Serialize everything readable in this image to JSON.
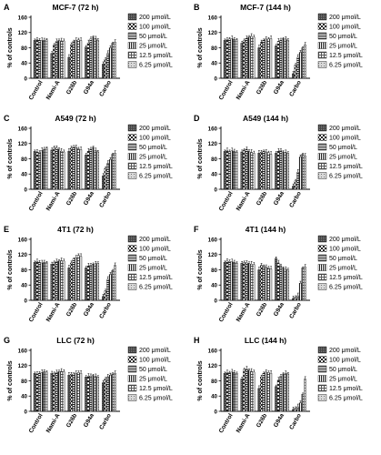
{
  "legend_entries": [
    "200 μmol/L",
    "100 μmol/L",
    "50 μmol/L",
    "25 μmol/L",
    "12.5 μmol/L",
    "6.25 μmol/L"
  ],
  "colors": {
    "axis": "#000000",
    "bar_dark": "#555555",
    "bar_mid": "#8c8c8c",
    "bar_light": "#e6e6e6",
    "background": "#ffffff"
  },
  "chart_data": [
    {
      "type": "bar",
      "panel": "A",
      "title": "MCF-7 (72 h)",
      "ylabel": "% of controls",
      "ylim": [
        0,
        160
      ],
      "yticks": [
        0,
        40,
        80,
        120,
        160
      ],
      "categories": [
        "Control",
        "Nami-A",
        "G26b",
        "G94a",
        "Carbo"
      ],
      "series": [
        {
          "name": "200 μmol/L",
          "values": [
            100,
            65,
            55,
            82,
            37
          ]
        },
        {
          "name": "100 μmol/L",
          "values": [
            101,
            88,
            88,
            93,
            50
          ]
        },
        {
          "name": "50 μmol/L",
          "values": [
            100,
            97,
            97,
            103,
            65
          ]
        },
        {
          "name": "25 μmol/L",
          "values": [
            99,
            99,
            100,
            108,
            80
          ]
        },
        {
          "name": "12.5 μmol/L",
          "values": [
            100,
            98,
            101,
            104,
            92
          ]
        },
        {
          "name": "6.25 μmol/L",
          "values": [
            101,
            98,
            99,
            100,
            95
          ]
        }
      ]
    },
    {
      "type": "bar",
      "panel": "B",
      "title": "MCF-7 (144 h)",
      "ylabel": "% of controls",
      "ylim": [
        0,
        160
      ],
      "yticks": [
        0,
        40,
        80,
        120,
        160
      ],
      "categories": [
        "Control",
        "Nami-A",
        "G26b",
        "G94a",
        "Carbo"
      ],
      "series": [
        {
          "name": "200 μmol/L",
          "values": [
            100,
            92,
            80,
            85,
            12
          ]
        },
        {
          "name": "100 μmol/L",
          "values": [
            101,
            100,
            95,
            97,
            35
          ]
        },
        {
          "name": "50 μmol/L",
          "values": [
            103,
            105,
            100,
            100,
            55
          ]
        },
        {
          "name": "25 μmol/L",
          "values": [
            104,
            108,
            103,
            104,
            68
          ]
        },
        {
          "name": "12.5 μmol/L",
          "values": [
            102,
            110,
            103,
            103,
            80
          ]
        },
        {
          "name": "6.25 μmol/L",
          "values": [
            101,
            108,
            104,
            100,
            88
          ]
        }
      ]
    },
    {
      "type": "bar",
      "panel": "C",
      "title": "A549 (72 h)",
      "ylabel": "% of controls",
      "ylim": [
        0,
        160
      ],
      "yticks": [
        0,
        40,
        80,
        120,
        160
      ],
      "categories": [
        "Control",
        "Nami-A",
        "G26b",
        "G94a",
        "Carbo"
      ],
      "series": [
        {
          "name": "200 μmol/L",
          "values": [
            100,
            103,
            100,
            90,
            35
          ]
        },
        {
          "name": "100 μmol/L",
          "values": [
            98,
            110,
            108,
            100,
            55
          ]
        },
        {
          "name": "50 μmol/L",
          "values": [
            97,
            108,
            112,
            105,
            68
          ]
        },
        {
          "name": "25 μmol/L",
          "values": [
            102,
            105,
            110,
            110,
            78
          ]
        },
        {
          "name": "12.5 μmol/L",
          "values": [
            105,
            100,
            106,
            102,
            92
          ]
        },
        {
          "name": "6.25 μmol/L",
          "values": [
            108,
            98,
            104,
            98,
            95
          ]
        }
      ]
    },
    {
      "type": "bar",
      "panel": "D",
      "title": "A549 (144 h)",
      "ylabel": "% of controls",
      "ylim": [
        0,
        160
      ],
      "yticks": [
        0,
        40,
        80,
        120,
        160
      ],
      "categories": [
        "Control",
        "Nami-A",
        "G26b",
        "G94a",
        "Carbo"
      ],
      "series": [
        {
          "name": "200 μmol/L",
          "values": [
            100,
            98,
            95,
            95,
            8
          ]
        },
        {
          "name": "100 μmol/L",
          "values": [
            102,
            103,
            97,
            100,
            22
          ]
        },
        {
          "name": "50 μmol/L",
          "values": [
            99,
            105,
            100,
            102,
            45
          ]
        },
        {
          "name": "25 μmol/L",
          "values": [
            101,
            100,
            98,
            98,
            85
          ]
        },
        {
          "name": "12.5 μmol/L",
          "values": [
            100,
            97,
            96,
            97,
            92
          ]
        },
        {
          "name": "6.25 μmol/L",
          "values": [
            98,
            95,
            92,
            95,
            88
          ]
        }
      ]
    },
    {
      "type": "bar",
      "panel": "E",
      "title": "4T1 (72 h)",
      "ylabel": "% of controls",
      "ylim": [
        0,
        160
      ],
      "yticks": [
        0,
        40,
        80,
        120,
        160
      ],
      "categories": [
        "Control",
        "Nami-A",
        "G26b",
        "G94a",
        "Carbo"
      ],
      "series": [
        {
          "name": "200 μmol/L",
          "values": [
            100,
            95,
            85,
            85,
            10
          ]
        },
        {
          "name": "100 μmol/L",
          "values": [
            102,
            100,
            98,
            90,
            25
          ]
        },
        {
          "name": "50 μmol/L",
          "values": [
            100,
            102,
            108,
            92,
            55
          ]
        },
        {
          "name": "25 μmol/L",
          "values": [
            98,
            103,
            112,
            95,
            68
          ]
        },
        {
          "name": "12.5 μmol/L",
          "values": [
            100,
            104,
            118,
            96,
            78
          ]
        },
        {
          "name": "6.25 μmol/L",
          "values": [
            99,
            103,
            115,
            97,
            92
          ]
        }
      ]
    },
    {
      "type": "bar",
      "panel": "F",
      "title": "4T1 (144 h)",
      "ylabel": "% of controls",
      "ylim": [
        0,
        160
      ],
      "yticks": [
        0,
        40,
        80,
        120,
        160
      ],
      "categories": [
        "Control",
        "Nami-A",
        "G26b",
        "G94a",
        "Carbo"
      ],
      "series": [
        {
          "name": "200 μmol/L",
          "values": [
            100,
            97,
            80,
            110,
            5
          ]
        },
        {
          "name": "100 μmol/L",
          "values": [
            103,
            100,
            92,
            98,
            8
          ]
        },
        {
          "name": "50 μmol/L",
          "values": [
            102,
            98,
            90,
            90,
            12
          ]
        },
        {
          "name": "25 μmol/L",
          "values": [
            101,
            97,
            87,
            85,
            45
          ]
        },
        {
          "name": "12.5 μmol/L",
          "values": [
            100,
            95,
            85,
            82,
            85
          ]
        },
        {
          "name": "6.25 μmol/L",
          "values": [
            98,
            94,
            82,
            80,
            88
          ]
        }
      ]
    },
    {
      "type": "bar",
      "panel": "G",
      "title": "LLC (72 h)",
      "ylabel": "% of controls",
      "ylim": [
        0,
        160
      ],
      "yticks": [
        0,
        40,
        80,
        120,
        160
      ],
      "categories": [
        "Control",
        "Nami-A",
        "G26b",
        "G94a",
        "Carbo"
      ],
      "series": [
        {
          "name": "200 μmol/L",
          "values": [
            100,
            100,
            95,
            90,
            75
          ]
        },
        {
          "name": "100 μmol/L",
          "values": [
            98,
            100,
            97,
            92,
            85
          ]
        },
        {
          "name": "50 μmol/L",
          "values": [
            100,
            102,
            98,
            93,
            90
          ]
        },
        {
          "name": "25 μmol/L",
          "values": [
            102,
            104,
            100,
            94,
            95
          ]
        },
        {
          "name": "12.5 μmol/L",
          "values": [
            104,
            105,
            102,
            92,
            98
          ]
        },
        {
          "name": "6.25 μmol/L",
          "values": [
            103,
            104,
            100,
            90,
            100
          ]
        }
      ]
    },
    {
      "type": "bar",
      "panel": "H",
      "title": "LLC (144 h)",
      "ylabel": "% of controls",
      "ylim": [
        0,
        160
      ],
      "yticks": [
        0,
        40,
        80,
        120,
        160
      ],
      "categories": [
        "Control",
        "Nami-A",
        "G26b",
        "G94a",
        "Carbo"
      ],
      "series": [
        {
          "name": "200 μmol/L",
          "values": [
            100,
            85,
            60,
            65,
            5
          ]
        },
        {
          "name": "100 μmol/L",
          "values": [
            102,
            110,
            90,
            82,
            8
          ]
        },
        {
          "name": "50 μmol/L",
          "values": [
            101,
            112,
            100,
            92,
            12
          ]
        },
        {
          "name": "25 μmol/L",
          "values": [
            103,
            108,
            103,
            98,
            22
          ]
        },
        {
          "name": "12.5 μmol/L",
          "values": [
            102,
            105,
            102,
            100,
            45
          ]
        },
        {
          "name": "6.25 μmol/L",
          "values": [
            100,
            103,
            100,
            98,
            85
          ]
        }
      ]
    }
  ]
}
